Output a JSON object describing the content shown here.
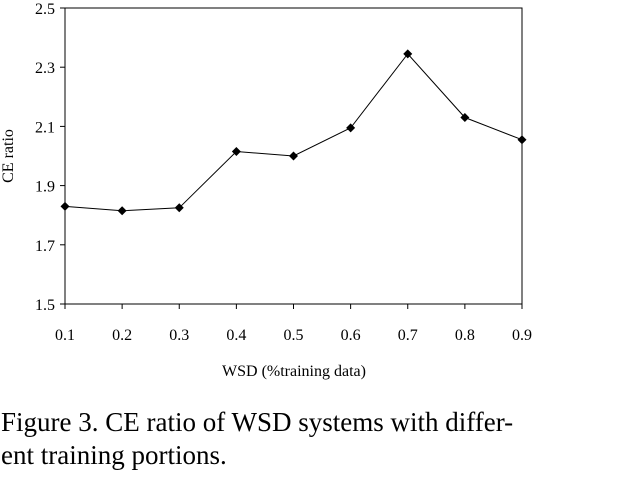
{
  "chart_data": {
    "type": "line",
    "x": [
      0.1,
      0.2,
      0.3,
      0.4,
      0.5,
      0.6,
      0.7,
      0.8,
      0.9
    ],
    "series": [
      {
        "values": [
          1.83,
          1.815,
          1.825,
          2.015,
          2.0,
          2.095,
          2.345,
          2.13,
          2.055
        ]
      }
    ],
    "xlabel": "WSD (%training data)",
    "ylabel": "CE ratio",
    "xlim": [
      0.1,
      0.9
    ],
    "ylim": [
      1.5,
      2.5
    ],
    "x_ticks": [
      "0.1",
      "0.2",
      "0.3",
      "0.4",
      "0.5",
      "0.6",
      "0.7",
      "0.8",
      "0.9"
    ],
    "y_ticks": [
      "1.5",
      "1.7",
      "1.9",
      "2.1",
      "2.3",
      "2.5"
    ],
    "grid": false,
    "marker": "diamond",
    "line_color": "#000000"
  },
  "caption": {
    "line1": "Figure 3. CE ratio of WSD systems with differ-",
    "line2": "ent training portions."
  }
}
